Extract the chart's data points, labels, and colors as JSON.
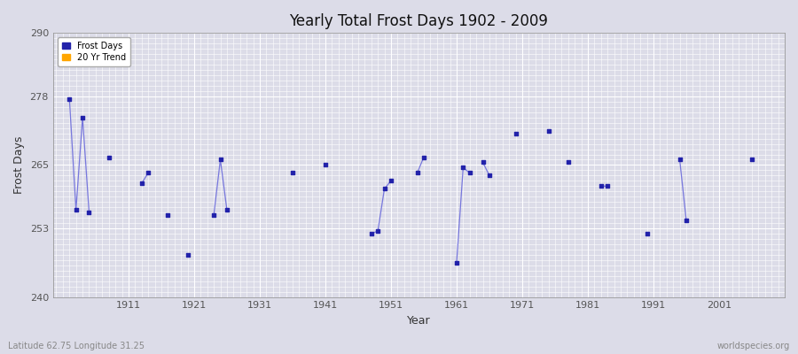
{
  "title": "Yearly Total Frost Days 1902 - 2009",
  "xlabel": "Year",
  "ylabel": "Frost Days",
  "footnote_left": "Latitude 62.75 Longitude 31.25",
  "footnote_right": "worldspecies.org",
  "ylim": [
    240,
    290
  ],
  "yticks": [
    240,
    253,
    265,
    278,
    290
  ],
  "xlim": [
    1899.5,
    2011
  ],
  "xticks": [
    1911,
    1921,
    1931,
    1941,
    1951,
    1961,
    1971,
    1981,
    1991,
    2001
  ],
  "line_color": "#7777dd",
  "marker_color": "#2222aa",
  "trend_color": "#FFA500",
  "bg_color": "#dcdce8",
  "plot_bg_color": "#dcdce8",
  "grid_color": "#ffffff",
  "segments": [
    [
      1902,
      277.5
    ],
    [
      1903,
      256.5
    ],
    [
      1904,
      274.0
    ],
    [
      1905,
      256.0
    ],
    [
      null,
      null
    ],
    [
      1908,
      266.5
    ],
    [
      null,
      null
    ],
    [
      1913,
      261.5
    ],
    [
      1914,
      263.5
    ],
    [
      null,
      null
    ],
    [
      1917,
      255.5
    ],
    [
      null,
      null
    ],
    [
      1920,
      248.0
    ],
    [
      null,
      null
    ],
    [
      1924,
      255.5
    ],
    [
      1925,
      266.0
    ],
    [
      1926,
      256.5
    ],
    [
      null,
      null
    ],
    [
      1936,
      263.5
    ],
    [
      null,
      null
    ],
    [
      1941,
      265.0
    ],
    [
      null,
      null
    ],
    [
      1948,
      252.0
    ],
    [
      1949,
      252.5
    ],
    [
      1950,
      260.5
    ],
    [
      1951,
      262.0
    ],
    [
      null,
      null
    ],
    [
      1955,
      263.5
    ],
    [
      1956,
      266.5
    ],
    [
      null,
      null
    ],
    [
      1961,
      246.5
    ],
    [
      1962,
      264.5
    ],
    [
      1963,
      263.5
    ],
    [
      null,
      null
    ],
    [
      1965,
      265.5
    ],
    [
      1966,
      263.0
    ],
    [
      null,
      null
    ],
    [
      1970,
      271.0
    ],
    [
      null,
      null
    ],
    [
      1975,
      271.5
    ],
    [
      null,
      null
    ],
    [
      1978,
      265.5
    ],
    [
      null,
      null
    ],
    [
      1983,
      261.0
    ],
    [
      1984,
      261.0
    ],
    [
      null,
      null
    ],
    [
      1990,
      252.0
    ],
    [
      null,
      null
    ],
    [
      1995,
      266.0
    ],
    [
      1996,
      254.5
    ],
    [
      null,
      null
    ],
    [
      2006,
      266.0
    ]
  ],
  "legend_entries": [
    "Frost Days",
    "20 Yr Trend"
  ]
}
